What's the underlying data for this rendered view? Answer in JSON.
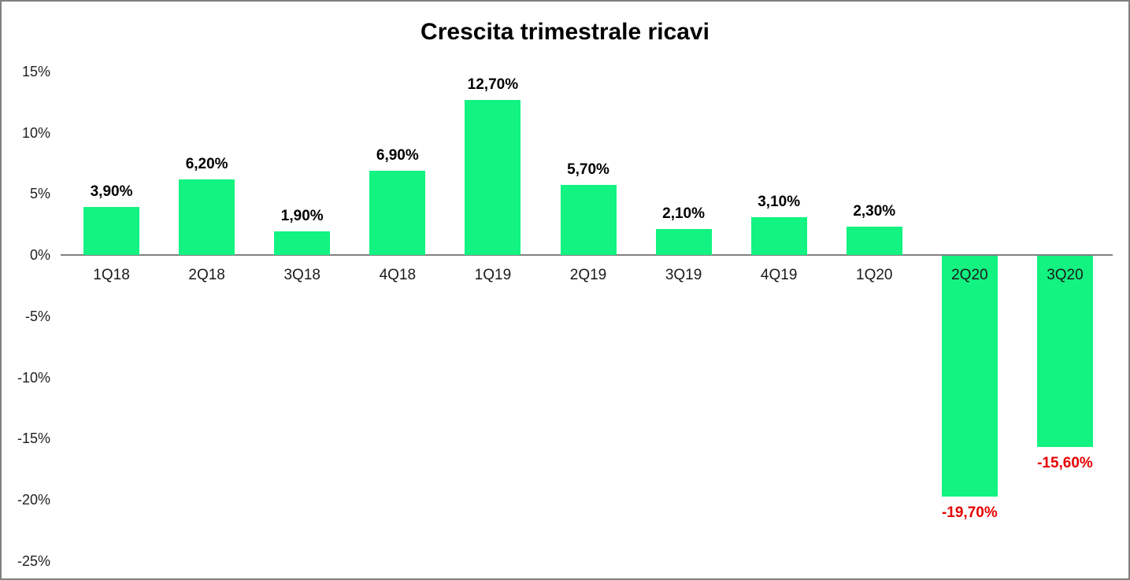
{
  "chart_data": {
    "type": "bar",
    "title": "Crescita trimestrale ricavi",
    "categories": [
      "1Q18",
      "2Q18",
      "3Q18",
      "4Q18",
      "1Q19",
      "2Q19",
      "3Q19",
      "4Q19",
      "1Q20",
      "2Q20",
      "3Q20"
    ],
    "values": [
      3.9,
      6.2,
      1.9,
      6.9,
      12.7,
      5.7,
      2.1,
      3.1,
      2.3,
      -19.7,
      -15.6
    ],
    "value_labels": [
      "3,90%",
      "6,20%",
      "1,90%",
      "6,90%",
      "12,70%",
      "5,70%",
      "2,10%",
      "3,10%",
      "2,30%",
      "-19,70%",
      "-15,60%"
    ],
    "ytick_labels": [
      "15%",
      "10%",
      "5%",
      "0%",
      "-5%",
      "-10%",
      "-15%",
      "-20%",
      "-25%"
    ],
    "ytick_values": [
      15,
      10,
      5,
      0,
      -5,
      -10,
      -15,
      -20,
      -25
    ],
    "ylim": [
      -25,
      15
    ],
    "xlabel": "",
    "ylabel": "",
    "grid": false,
    "legend": false,
    "bar_color": "#12F381",
    "positive_label_color": "#000000",
    "negative_label_color": "#E60000",
    "axis_line_color": "#808080",
    "frame_border_color": "#808080"
  }
}
